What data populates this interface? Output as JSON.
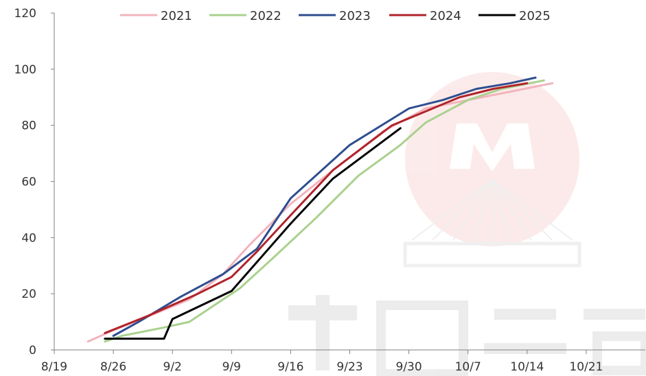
{
  "chart_data": {
    "type": "line",
    "title": "",
    "xlabel": "",
    "ylabel": "",
    "ylim": [
      0,
      120
    ],
    "yticks": [
      0,
      20,
      40,
      60,
      80,
      100,
      120
    ],
    "xticks": [
      "8/19",
      "8/26",
      "9/2",
      "9/9",
      "9/16",
      "9/23",
      "9/30",
      "10/7",
      "10/14",
      "10/21"
    ],
    "xrange_dates": [
      "2025-08-19",
      "2025-10-28"
    ],
    "legend_position": "top",
    "grid": false,
    "series": [
      {
        "name": "2021",
        "color": "#f2b3bc",
        "points": [
          {
            "x": "2025-08-23",
            "y": 3
          },
          {
            "x": "2025-08-26",
            "y": 7
          },
          {
            "x": "2025-08-31",
            "y": 13
          },
          {
            "x": "2025-09-04",
            "y": 18
          },
          {
            "x": "2025-09-08",
            "y": 27
          },
          {
            "x": "2025-09-11",
            "y": 37
          },
          {
            "x": "2025-09-16",
            "y": 52
          },
          {
            "x": "2025-09-21",
            "y": 64
          },
          {
            "x": "2025-09-27",
            "y": 78
          },
          {
            "x": "2025-10-02",
            "y": 86
          },
          {
            "x": "2025-10-07",
            "y": 89
          },
          {
            "x": "2025-10-12",
            "y": 92
          },
          {
            "x": "2025-10-17",
            "y": 95
          }
        ]
      },
      {
        "name": "2022",
        "color": "#a9d18e",
        "points": [
          {
            "x": "2025-08-25",
            "y": 3
          },
          {
            "x": "2025-08-27",
            "y": 5
          },
          {
            "x": "2025-09-01",
            "y": 8
          },
          {
            "x": "2025-09-04",
            "y": 10
          },
          {
            "x": "2025-09-07",
            "y": 16
          },
          {
            "x": "2025-09-10",
            "y": 22
          },
          {
            "x": "2025-09-14",
            "y": 33
          },
          {
            "x": "2025-09-19",
            "y": 47
          },
          {
            "x": "2025-09-24",
            "y": 62
          },
          {
            "x": "2025-09-29",
            "y": 73
          },
          {
            "x": "2025-10-02",
            "y": 81
          },
          {
            "x": "2025-10-07",
            "y": 89
          },
          {
            "x": "2025-10-11",
            "y": 93
          },
          {
            "x": "2025-10-16",
            "y": 96
          }
        ]
      },
      {
        "name": "2023",
        "color": "#2e4e8f",
        "points": [
          {
            "x": "2025-08-26",
            "y": 5
          },
          {
            "x": "2025-08-29",
            "y": 10
          },
          {
            "x": "2025-09-03",
            "y": 19
          },
          {
            "x": "2025-09-08",
            "y": 27
          },
          {
            "x": "2025-09-12",
            "y": 36
          },
          {
            "x": "2025-09-16",
            "y": 54
          },
          {
            "x": "2025-09-23",
            "y": 73
          },
          {
            "x": "2025-09-30",
            "y": 86
          },
          {
            "x": "2025-10-04",
            "y": 89
          },
          {
            "x": "2025-10-08",
            "y": 93
          },
          {
            "x": "2025-10-12",
            "y": 95
          },
          {
            "x": "2025-10-15",
            "y": 97
          }
        ]
      },
      {
        "name": "2024",
        "color": "#b0232a",
        "points": [
          {
            "x": "2025-08-25",
            "y": 6
          },
          {
            "x": "2025-08-30",
            "y": 12
          },
          {
            "x": "2025-09-02",
            "y": 16
          },
          {
            "x": "2025-09-05",
            "y": 20
          },
          {
            "x": "2025-09-09",
            "y": 26
          },
          {
            "x": "2025-09-12",
            "y": 35
          },
          {
            "x": "2025-09-16",
            "y": 48
          },
          {
            "x": "2025-09-21",
            "y": 64
          },
          {
            "x": "2025-09-28",
            "y": 80
          },
          {
            "x": "2025-10-02",
            "y": 85
          },
          {
            "x": "2025-10-06",
            "y": 90
          },
          {
            "x": "2025-10-10",
            "y": 93
          },
          {
            "x": "2025-10-14",
            "y": 95
          }
        ]
      },
      {
        "name": "2025",
        "color": "#000000",
        "points": [
          {
            "x": "2025-08-25",
            "y": 4
          },
          {
            "x": "2025-09-01",
            "y": 4
          },
          {
            "x": "2025-09-02",
            "y": 11
          },
          {
            "x": "2025-09-09",
            "y": 21
          },
          {
            "x": "2025-09-16",
            "y": 45
          },
          {
            "x": "2025-09-21",
            "y": 61
          },
          {
            "x": "2025-09-29",
            "y": 79
          }
        ]
      }
    ]
  }
}
